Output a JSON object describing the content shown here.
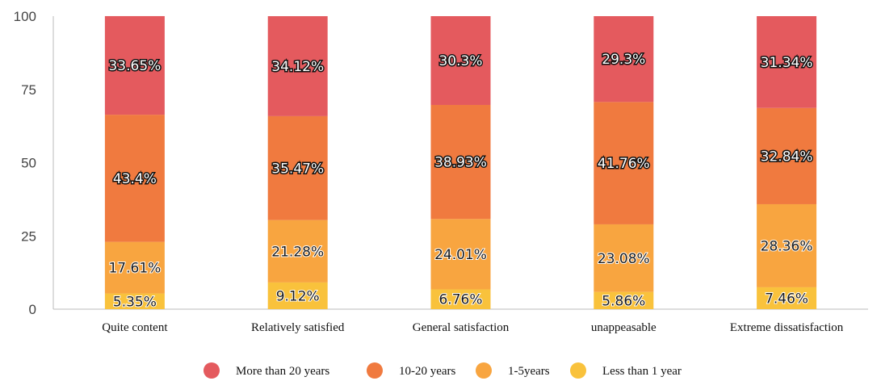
{
  "chart_data": {
    "type": "bar",
    "stacked": true,
    "categories": [
      "Quite content",
      "Relatively satisfied",
      "General satisfaction",
      "unappeasable",
      "Extreme dissatisfaction"
    ],
    "series": [
      {
        "name": "Less than 1 year",
        "color": "#f9c23c",
        "values": [
          5.35,
          9.12,
          6.76,
          5.86,
          7.46
        ],
        "labels": [
          "5.35%",
          "9.12%",
          "6.76%",
          "5.86%",
          "7.46%"
        ]
      },
      {
        "name": "1-5years",
        "color": "#f8a540",
        "values": [
          17.61,
          21.28,
          24.01,
          23.08,
          28.36
        ],
        "labels": [
          "17.61%",
          "21.28%",
          "24.01%",
          "23.08%",
          "28.36%"
        ]
      },
      {
        "name": "10-20 years",
        "color": "#f07a3f",
        "values": [
          43.4,
          35.47,
          38.93,
          41.76,
          32.84
        ],
        "labels": [
          "43.4%",
          "35.47%",
          "38.93%",
          "41.76%",
          "32.84%"
        ]
      },
      {
        "name": "More than 20 years",
        "color": "#e45a5e",
        "values": [
          33.65,
          34.12,
          30.3,
          29.3,
          31.34
        ],
        "labels": [
          "33.65%",
          "34.12%",
          "30.3%",
          "29.3%",
          "31.34%"
        ]
      }
    ],
    "legend_order": [
      "More than 20 years",
      "10-20 years",
      "1-5years",
      "Less than 1 year"
    ],
    "yticks": [
      "0",
      "25",
      "50",
      "75",
      "100"
    ],
    "ylim": [
      0,
      100
    ],
    "legend_position": "bottom",
    "grid": false
  }
}
